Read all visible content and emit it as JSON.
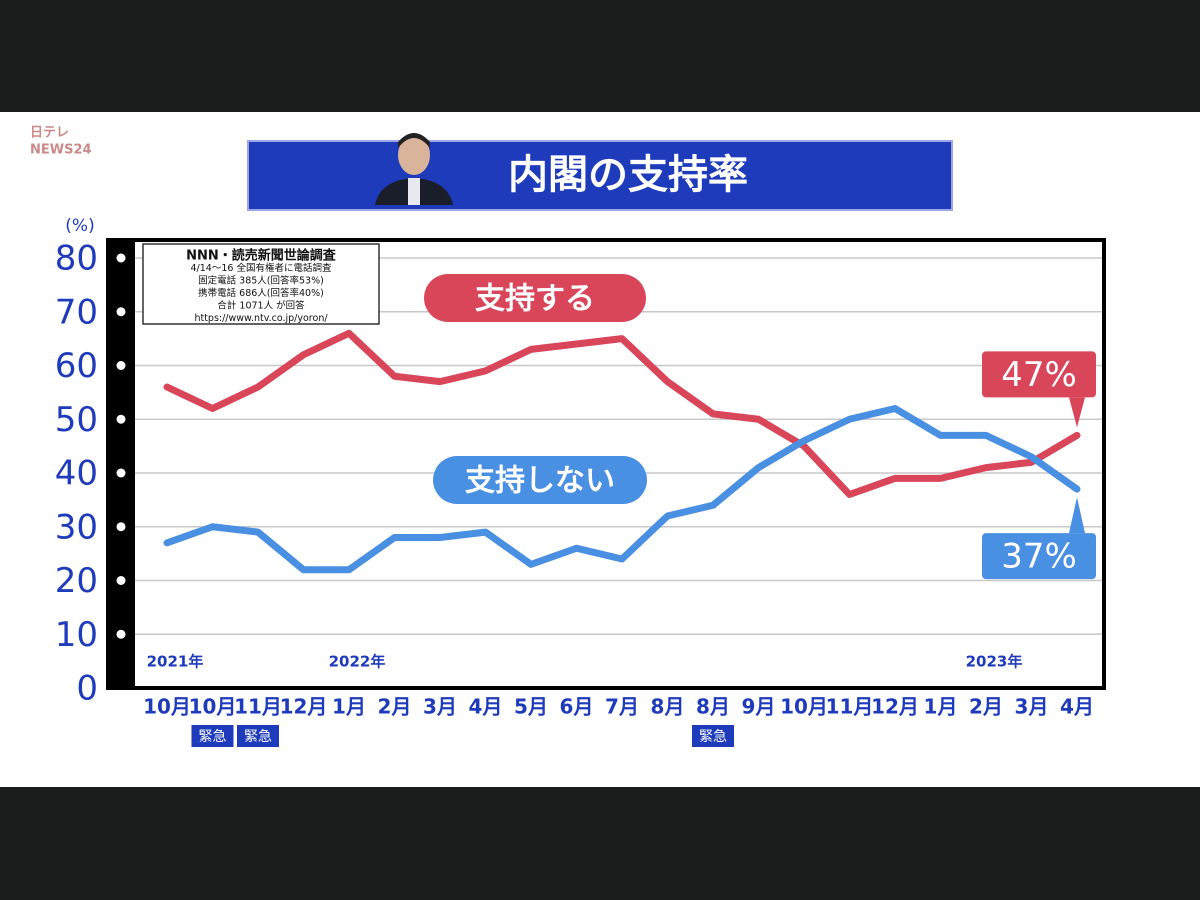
{
  "logo": {
    "top": "日テレ",
    "bottom": "NEWS24"
  },
  "chart_data": {
    "type": "line",
    "title": "内閣の支持率",
    "y_unit": "(%)",
    "source_box": [
      "NNN・読売新聞世論調査",
      "4/14〜16 全国有権者に電話調査",
      "固定電話 385人(回答率53%)",
      "携帯電話 686人(回答率40%)",
      "合計 1071人 が回答",
      "https://www.ntv.co.jp/yoron/"
    ],
    "categories": [
      "10月",
      "10月",
      "11月",
      "12月",
      "1月",
      "2月",
      "3月",
      "4月",
      "5月",
      "6月",
      "7月",
      "8月",
      "8月",
      "9月",
      "10月",
      "11月",
      "12月",
      "1月",
      "2月",
      "3月",
      "4月"
    ],
    "category_notes": [
      null,
      "緊急",
      "緊急",
      null,
      null,
      null,
      null,
      null,
      null,
      null,
      null,
      null,
      "緊急",
      null,
      null,
      null,
      null,
      null,
      null,
      null,
      null
    ],
    "year_labels": [
      "2021年",
      null,
      null,
      null,
      "2022年",
      null,
      null,
      null,
      null,
      null,
      null,
      null,
      null,
      null,
      null,
      null,
      null,
      null,
      "2023年",
      null,
      null
    ],
    "series": [
      {
        "name": "支持する",
        "color": "#d9465a",
        "values": [
          56,
          52,
          56,
          62,
          66,
          58,
          57,
          59,
          63,
          64,
          65,
          57,
          51,
          50,
          45,
          36,
          39,
          39,
          41,
          42,
          47
        ],
        "value_labels": [
          null,
          null,
          null,
          null,
          null,
          null,
          null,
          null,
          null,
          null,
          null,
          null,
          null,
          null,
          null,
          null,
          null,
          null,
          null,
          null,
          "47%"
        ]
      },
      {
        "name": "支持しない",
        "color": "#4a90e2",
        "values": [
          27,
          30,
          29,
          22,
          22,
          28,
          28,
          29,
          23,
          26,
          24,
          32,
          34,
          41,
          46,
          50,
          52,
          47,
          47,
          43,
          37
        ],
        "value_labels": [
          null,
          null,
          null,
          null,
          null,
          null,
          null,
          null,
          null,
          null,
          null,
          null,
          null,
          null,
          null,
          null,
          null,
          null,
          null,
          null,
          "37%"
        ]
      }
    ],
    "ylim": [
      0,
      80
    ],
    "yticks": [
      0,
      10,
      20,
      30,
      40,
      50,
      60,
      70,
      80
    ],
    "grid": true
  }
}
